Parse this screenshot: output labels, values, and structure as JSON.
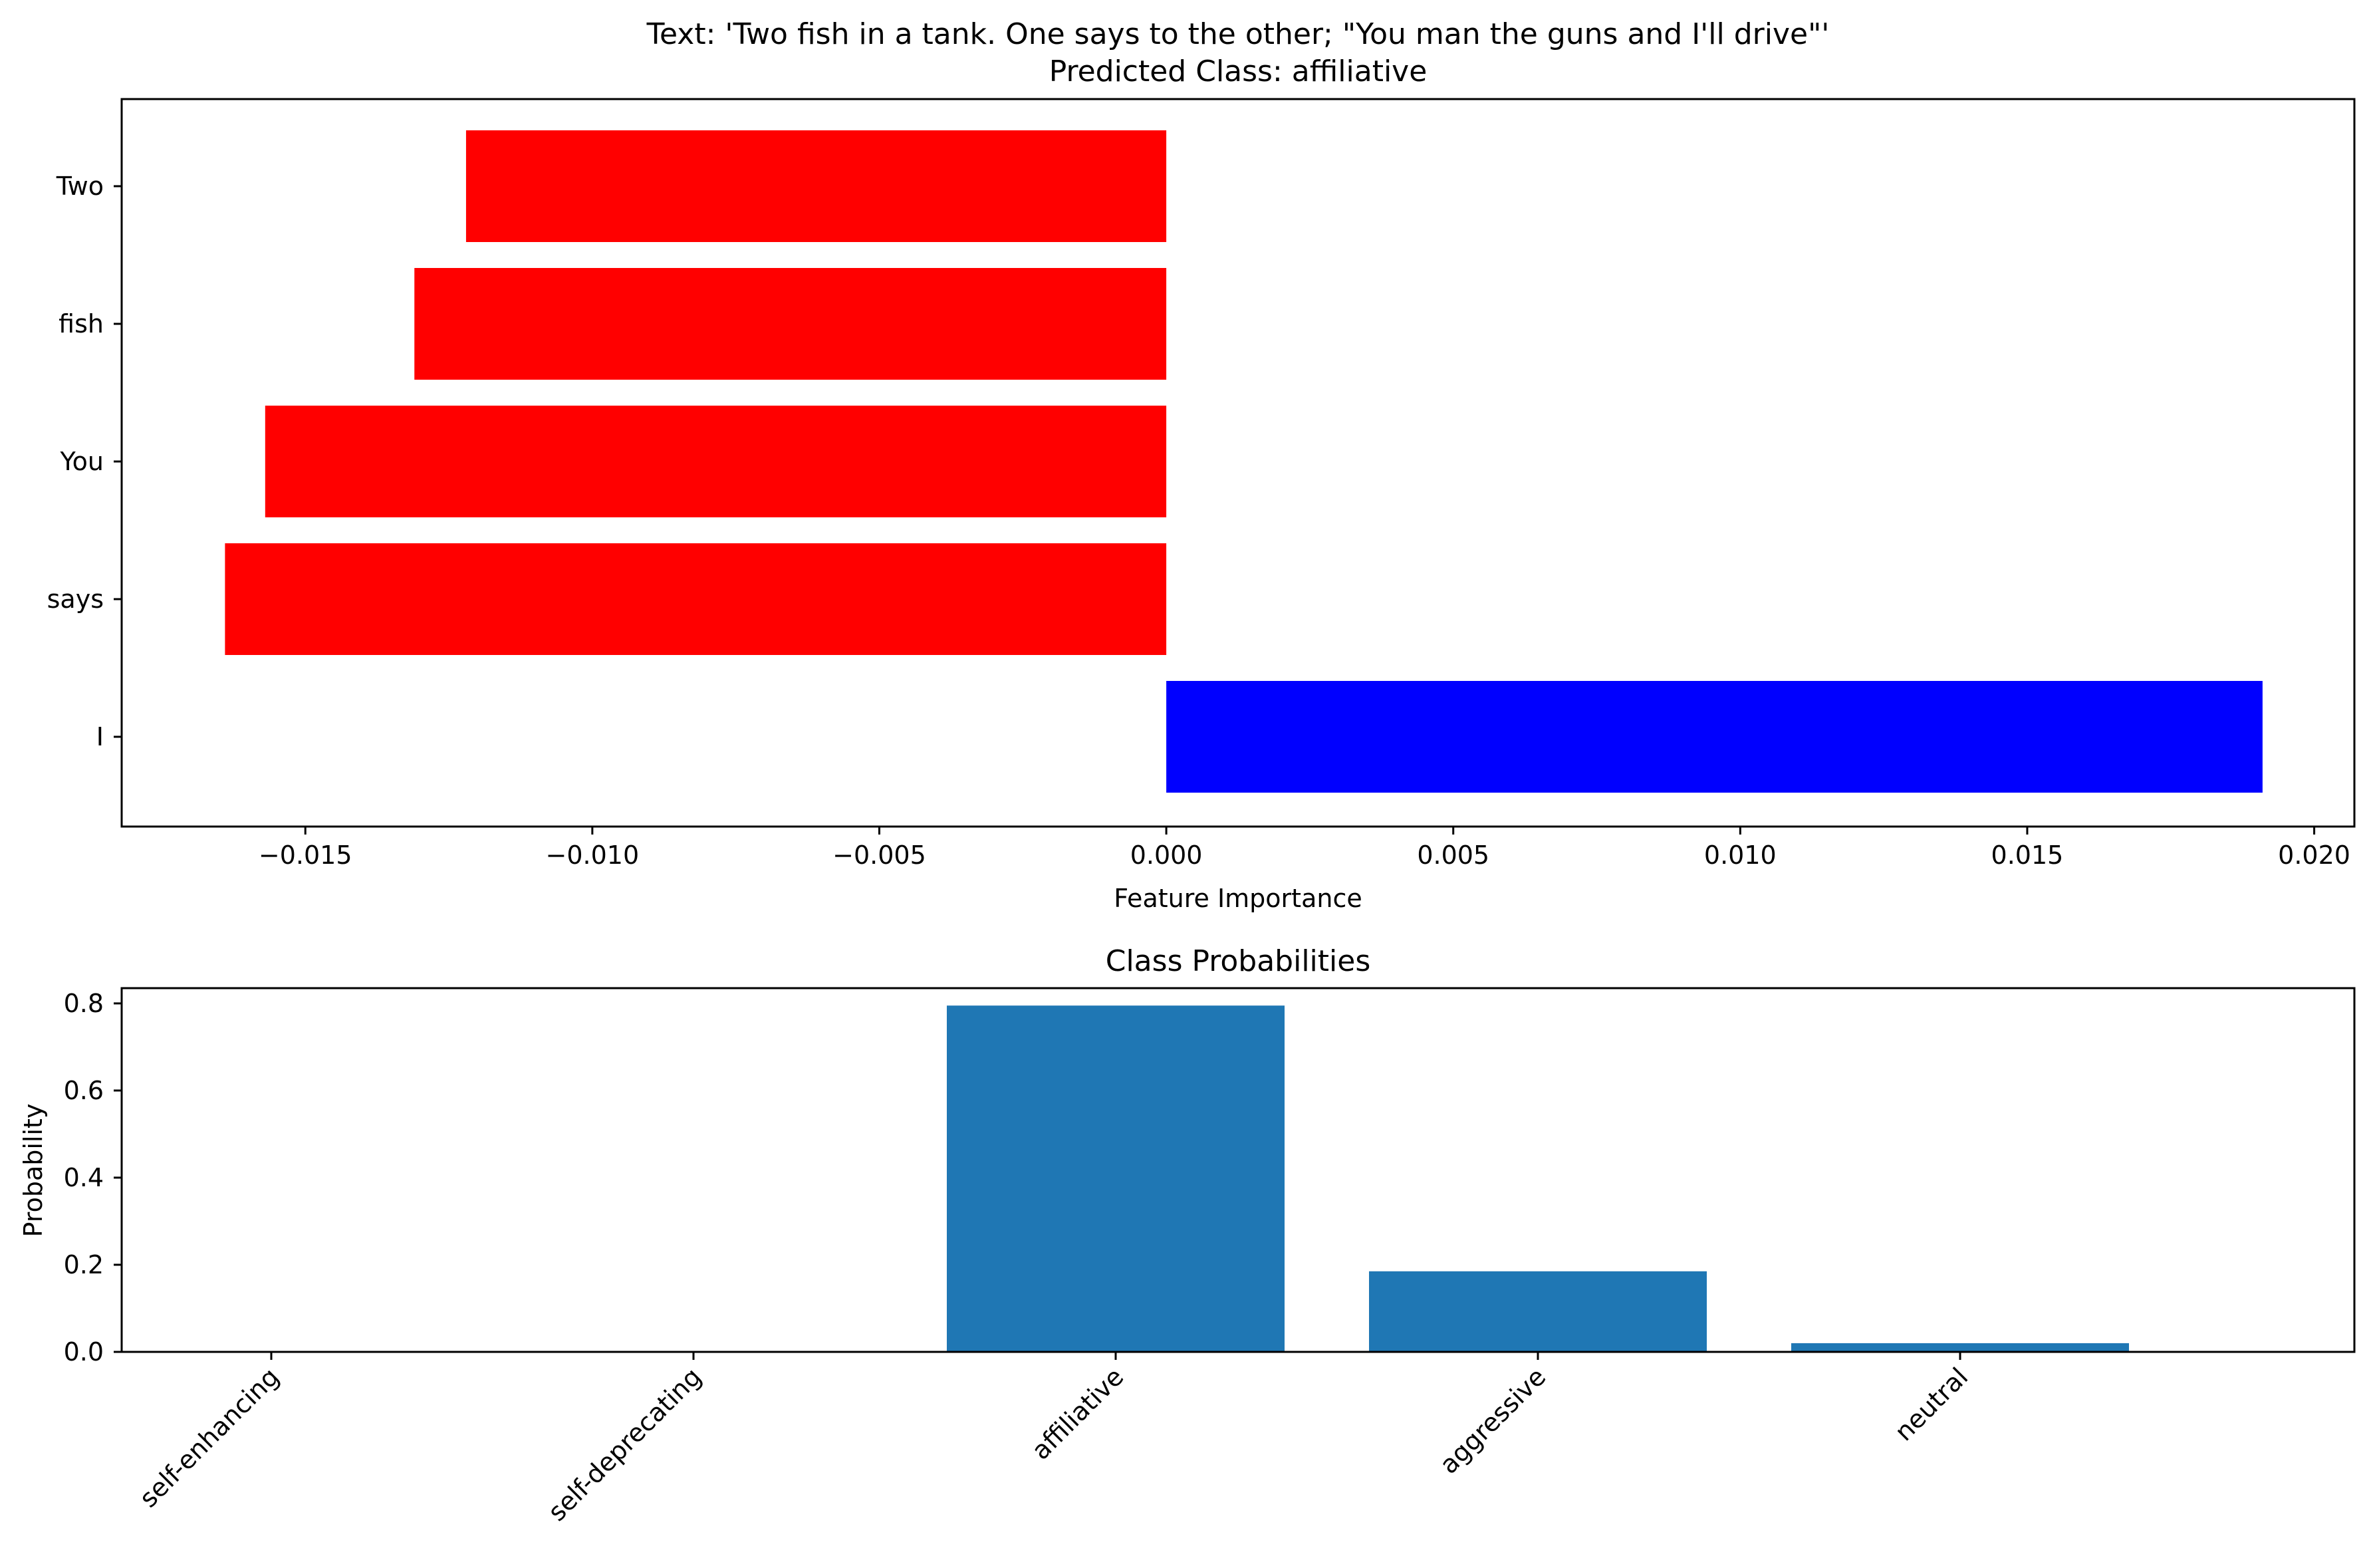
{
  "chart_data": [
    {
      "type": "bar",
      "orientation": "horizontal",
      "title_lines": [
        "Text: 'Two fish in a tank. One says to the other; \"You man the guns and I'll drive\"'",
        "Predicted Class: affiliative"
      ],
      "xlabel": "Feature Importance",
      "ylabel": "",
      "categories": [
        "Two",
        "fish",
        "You",
        "says",
        "I"
      ],
      "values": [
        -0.0122,
        -0.0131,
        -0.0157,
        -0.0164,
        0.0191
      ],
      "bar_colors": [
        "#ff0000",
        "#ff0000",
        "#ff0000",
        "#ff0000",
        "#0000ff"
      ],
      "xlim": [
        -0.0182,
        0.0207
      ],
      "xticks": [
        -0.015,
        -0.01,
        -0.005,
        0.0,
        0.005,
        0.01,
        0.015,
        0.02
      ],
      "xtick_labels": [
        "−0.015",
        "−0.010",
        "−0.005",
        "0.000",
        "0.005",
        "0.010",
        "0.015",
        "0.020"
      ],
      "grid": false
    },
    {
      "type": "bar",
      "title": "Class Probabilities",
      "xlabel": "",
      "ylabel": "Probability",
      "categories": [
        "self-enhancing",
        "self-deprecating",
        "affiliative",
        "aggressive",
        "neutral"
      ],
      "values": [
        0.0,
        0.0,
        0.795,
        0.185,
        0.02
      ],
      "bar_color": "#1f77b4",
      "ylim": [
        0,
        0.835
      ],
      "yticks": [
        0.0,
        0.2,
        0.4,
        0.6,
        0.8
      ],
      "ytick_labels": [
        "0.0",
        "0.2",
        "0.4",
        "0.6",
        "0.8"
      ],
      "grid": false
    }
  ]
}
